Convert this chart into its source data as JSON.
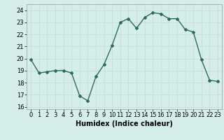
{
  "x": [
    0,
    1,
    2,
    3,
    4,
    5,
    6,
    7,
    8,
    9,
    10,
    11,
    12,
    13,
    14,
    15,
    16,
    17,
    18,
    19,
    20,
    21,
    22,
    23
  ],
  "y": [
    19.9,
    18.8,
    18.9,
    19.0,
    19.0,
    18.8,
    16.9,
    16.5,
    18.5,
    19.5,
    21.1,
    23.0,
    23.3,
    22.5,
    23.4,
    23.8,
    23.7,
    23.3,
    23.3,
    22.4,
    22.2,
    19.9,
    18.2,
    18.1
  ],
  "line_color": "#2d6b5e",
  "marker": "D",
  "marker_size": 2.0,
  "line_width": 1.0,
  "bg_color": "#d5eeeb",
  "grid_color": "#c4dbd8",
  "xlabel": "Humidex (Indice chaleur)",
  "xlabel_fontsize": 7,
  "tick_fontsize": 6,
  "ylim": [
    15.8,
    24.5
  ],
  "yticks": [
    16,
    17,
    18,
    19,
    20,
    21,
    22,
    23,
    24
  ],
  "xlim": [
    -0.5,
    23.5
  ],
  "xticks": [
    0,
    1,
    2,
    3,
    4,
    5,
    6,
    7,
    8,
    9,
    10,
    11,
    12,
    13,
    14,
    15,
    16,
    17,
    18,
    19,
    20,
    21,
    22,
    23
  ]
}
